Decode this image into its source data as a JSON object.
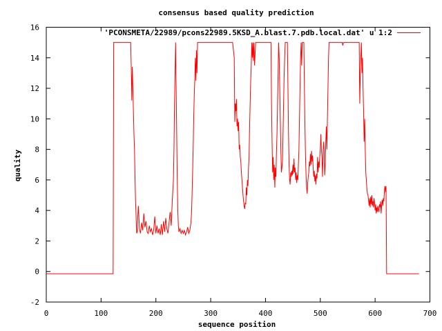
{
  "chart_data": {
    "type": "line",
    "title": "consensus based quality prediction",
    "xlabel": "sequence position",
    "ylabel": "quality",
    "xlim": [
      0,
      700
    ],
    "ylim": [
      -2,
      16
    ],
    "x_ticks": [
      "0",
      "100",
      "200",
      "300",
      "400",
      "500",
      "600",
      "700"
    ],
    "y_ticks": [
      "-2",
      "0",
      "2",
      "4",
      "6",
      "8",
      "10",
      "12",
      "14",
      "16"
    ],
    "grid": false,
    "legend_position": "top-right",
    "series": [
      {
        "name": "'PCONSMETA/22989/pcons22989.5KSD_A.blast.7.pdb.local.dat' u 1:2",
        "color": "#ff0000",
        "points": [
          [
            1,
            -0.15
          ],
          [
            122,
            -0.15
          ],
          [
            123,
            15
          ],
          [
            154,
            15
          ],
          [
            155,
            13.5
          ],
          [
            156,
            11.2
          ],
          [
            157,
            13.4
          ],
          [
            158,
            12
          ],
          [
            159,
            10.5
          ],
          [
            160,
            9
          ],
          [
            161,
            8
          ],
          [
            162,
            6
          ],
          [
            163,
            4.5
          ],
          [
            164,
            3.5
          ],
          [
            165,
            2.5
          ],
          [
            166,
            2.6
          ],
          [
            167,
            3.6
          ],
          [
            168,
            4.3
          ],
          [
            169,
            3.6
          ],
          [
            170,
            2.8
          ],
          [
            172,
            2.5
          ],
          [
            174,
            3.2
          ],
          [
            176,
            2.7
          ],
          [
            178,
            3.8
          ],
          [
            180,
            2.9
          ],
          [
            182,
            3.3
          ],
          [
            184,
            2.6
          ],
          [
            186,
            2.5
          ],
          [
            188,
            3
          ],
          [
            190,
            2.6
          ],
          [
            192,
            2.8
          ],
          [
            194,
            2.4
          ],
          [
            196,
            2.7
          ],
          [
            198,
            3.6
          ],
          [
            200,
            2.5
          ],
          [
            202,
            3
          ],
          [
            204,
            2.5
          ],
          [
            206,
            2.8
          ],
          [
            208,
            2.4
          ],
          [
            210,
            3.1
          ],
          [
            212,
            2.4
          ],
          [
            214,
            3.3
          ],
          [
            216,
            2.6
          ],
          [
            218,
            3.5
          ],
          [
            220,
            2.8
          ],
          [
            222,
            2.5
          ],
          [
            224,
            3.2
          ],
          [
            226,
            3.9
          ],
          [
            228,
            3
          ],
          [
            230,
            4.7
          ],
          [
            232,
            6
          ],
          [
            233,
            8
          ],
          [
            234,
            11
          ],
          [
            235,
            13
          ],
          [
            236,
            15
          ],
          [
            237,
            12
          ],
          [
            238,
            9
          ],
          [
            239,
            6
          ],
          [
            240,
            4
          ],
          [
            241,
            3
          ],
          [
            242,
            2.6
          ],
          [
            244,
            2.8
          ],
          [
            246,
            2.5
          ],
          [
            248,
            2.7
          ],
          [
            250,
            2.5
          ],
          [
            252,
            2.7
          ],
          [
            254,
            2.4
          ],
          [
            256,
            2.6
          ],
          [
            258,
            2.9
          ],
          [
            260,
            2.5
          ],
          [
            262,
            2.7
          ],
          [
            264,
            3.2
          ],
          [
            265,
            3.8
          ],
          [
            266,
            5
          ],
          [
            267,
            6.5
          ],
          [
            268,
            8
          ],
          [
            269,
            10
          ],
          [
            270,
            11.5
          ],
          [
            271,
            12.6
          ],
          [
            272,
            14
          ],
          [
            273,
            12.5
          ],
          [
            274,
            14.5
          ],
          [
            275,
            13
          ],
          [
            276,
            15
          ],
          [
            300,
            15
          ],
          [
            330,
            15
          ],
          [
            340,
            15
          ],
          [
            343,
            14
          ],
          [
            344,
            9.8
          ],
          [
            345,
            11
          ],
          [
            346,
            10.5
          ],
          [
            347,
            11.3
          ],
          [
            348,
            9.5
          ],
          [
            349,
            10
          ],
          [
            350,
            9.2
          ],
          [
            351,
            9.8
          ],
          [
            352,
            8
          ],
          [
            353,
            8.3
          ],
          [
            354,
            7.5
          ],
          [
            355,
            7.2
          ],
          [
            356,
            6.5
          ],
          [
            357,
            6
          ],
          [
            358,
            5.5
          ],
          [
            359,
            5
          ],
          [
            360,
            4.6
          ],
          [
            361,
            4.3
          ],
          [
            362,
            4.1
          ],
          [
            363,
            4.5
          ],
          [
            364,
            4.4
          ],
          [
            365,
            5.5
          ],
          [
            366,
            5
          ],
          [
            367,
            6
          ],
          [
            368,
            5.6
          ],
          [
            369,
            6.8
          ],
          [
            370,
            7.5
          ],
          [
            371,
            9.5
          ],
          [
            372,
            11
          ],
          [
            373,
            12.5
          ],
          [
            374,
            13.5
          ],
          [
            375,
            15
          ],
          [
            376,
            14
          ],
          [
            377,
            15
          ],
          [
            378,
            13.8
          ],
          [
            379,
            15
          ],
          [
            380,
            13.5
          ],
          [
            381,
            14.2
          ],
          [
            382,
            15
          ],
          [
            383,
            15
          ],
          [
            384,
            15
          ],
          [
            400,
            15
          ],
          [
            410,
            15
          ],
          [
            411,
            11
          ],
          [
            412,
            8.5
          ],
          [
            413,
            6.5
          ],
          [
            414,
            7.5
          ],
          [
            415,
            6
          ],
          [
            416,
            7
          ],
          [
            417,
            5.5
          ],
          [
            418,
            6.8
          ],
          [
            419,
            6.2
          ],
          [
            420,
            7.8
          ],
          [
            421,
            9
          ],
          [
            422,
            11
          ],
          [
            423,
            13
          ],
          [
            424,
            15
          ],
          [
            425,
            14
          ],
          [
            426,
            12
          ],
          [
            427,
            10
          ],
          [
            428,
            8
          ],
          [
            429,
            6.5
          ],
          [
            430,
            6.8
          ],
          [
            431,
            7.3
          ],
          [
            432,
            9
          ],
          [
            433,
            11
          ],
          [
            434,
            12.8
          ],
          [
            435,
            14
          ],
          [
            436,
            15
          ],
          [
            440,
            15
          ],
          [
            441,
            12
          ],
          [
            442,
            9
          ],
          [
            443,
            7
          ],
          [
            444,
            6
          ],
          [
            445,
            5.7
          ],
          [
            446,
            6.5
          ],
          [
            447,
            6.2
          ],
          [
            448,
            6.6
          ],
          [
            449,
            6.3
          ],
          [
            450,
            7
          ],
          [
            451,
            6.4
          ],
          [
            452,
            7.4
          ],
          [
            453,
            6.5
          ],
          [
            454,
            6.8
          ],
          [
            455,
            6
          ],
          [
            456,
            6.5
          ],
          [
            457,
            5.8
          ],
          [
            458,
            6.3
          ],
          [
            459,
            6
          ],
          [
            460,
            7
          ],
          [
            461,
            8
          ],
          [
            462,
            10
          ],
          [
            463,
            12
          ],
          [
            464,
            14
          ],
          [
            465,
            15
          ],
          [
            466,
            13.5
          ],
          [
            467,
            15
          ],
          [
            470,
            15
          ],
          [
            471,
            12
          ],
          [
            472,
            9.5
          ],
          [
            473,
            7.6
          ],
          [
            474,
            6.3
          ],
          [
            475,
            5.5
          ],
          [
            476,
            5.1
          ],
          [
            477,
            5.8
          ],
          [
            478,
            6.2
          ],
          [
            479,
            6.5
          ],
          [
            480,
            7.2
          ],
          [
            481,
            6.9
          ],
          [
            482,
            7.7
          ],
          [
            483,
            7
          ],
          [
            484,
            7.9
          ],
          [
            485,
            7.2
          ],
          [
            486,
            7.6
          ],
          [
            487,
            6.8
          ],
          [
            488,
            6.2
          ],
          [
            489,
            6.6
          ],
          [
            490,
            5.9
          ],
          [
            491,
            6.3
          ],
          [
            492,
            5.7
          ],
          [
            493,
            6.4
          ],
          [
            494,
            6.1
          ],
          [
            495,
            7.5
          ],
          [
            496,
            6.5
          ],
          [
            497,
            7.2
          ],
          [
            498,
            6.8
          ],
          [
            499,
            7.5
          ],
          [
            500,
            8
          ],
          [
            501,
            9
          ],
          [
            502,
            8
          ],
          [
            503,
            7.5
          ],
          [
            504,
            6.2
          ],
          [
            505,
            7.8
          ],
          [
            506,
            8.5
          ],
          [
            507,
            8
          ],
          [
            508,
            6.3
          ],
          [
            509,
            7
          ],
          [
            510,
            8.5
          ],
          [
            511,
            9.5
          ],
          [
            512,
            8
          ],
          [
            513,
            10
          ],
          [
            514,
            12
          ],
          [
            515,
            14
          ],
          [
            516,
            15
          ],
          [
            540,
            15
          ],
          [
            541,
            14.8
          ],
          [
            542,
            15
          ],
          [
            571,
            15
          ],
          [
            572,
            11
          ],
          [
            573,
            13
          ],
          [
            574,
            14
          ],
          [
            575,
            15
          ],
          [
            576,
            13
          ],
          [
            577,
            14
          ],
          [
            578,
            12
          ],
          [
            579,
            10.5
          ],
          [
            580,
            8.5
          ],
          [
            581,
            10
          ],
          [
            582,
            8
          ],
          [
            583,
            6.5
          ],
          [
            584,
            6
          ],
          [
            585,
            5.4
          ],
          [
            586,
            5.1
          ],
          [
            587,
            5
          ],
          [
            588,
            4.7
          ],
          [
            589,
            4.3
          ],
          [
            590,
            4.8
          ],
          [
            591,
            4.2
          ],
          [
            592,
            4.9
          ],
          [
            593,
            4.4
          ],
          [
            594,
            5
          ],
          [
            595,
            4.3
          ],
          [
            596,
            4.6
          ],
          [
            597,
            4.2
          ],
          [
            598,
            4.8
          ],
          [
            599,
            4.5
          ],
          [
            600,
            4
          ],
          [
            601,
            4.4
          ],
          [
            602,
            3.8
          ],
          [
            603,
            4.2
          ],
          [
            604,
            3.9
          ],
          [
            605,
            4.3
          ],
          [
            606,
            4.1
          ],
          [
            607,
            3.9
          ],
          [
            608,
            4.4
          ],
          [
            609,
            4.2
          ],
          [
            610,
            4.6
          ],
          [
            611,
            3.8
          ],
          [
            612,
            4.4
          ],
          [
            613,
            4.7
          ],
          [
            614,
            4.3
          ],
          [
            615,
            4.8
          ],
          [
            616,
            4.6
          ],
          [
            617,
            5.3
          ],
          [
            618,
            5.6
          ],
          [
            619,
            5.2
          ],
          [
            620,
            5.6
          ],
          [
            621,
            -0.15
          ],
          [
            680,
            -0.15
          ]
        ]
      }
    ]
  }
}
